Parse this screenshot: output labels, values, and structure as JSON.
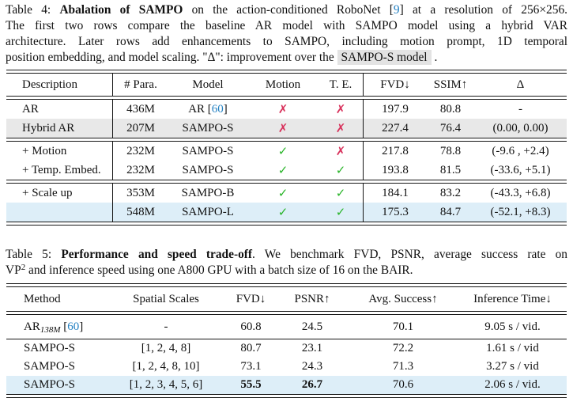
{
  "colors": {
    "cite_blue": "#2380c2",
    "check_green": "#28b428",
    "cross_red": "#d8315b",
    "row_gray": "#e8e8e8",
    "row_blue": "#ddeef8",
    "highlight_gray": "#e3e3e3",
    "rule_color": "#161616"
  },
  "icons": {
    "check": "✓",
    "cross": "✗"
  },
  "caption4": {
    "line1": {
      "prefix": "Table 4: ",
      "bold": "Abalation of SAMPO",
      "mid": " on the action-conditioned RoboNet [",
      "cite": "9",
      "suffix": "] at a resolution of 256×256."
    },
    "line2": "The first two rows compare the baseline AR model with SAMPO model using a hybrid VAR",
    "line3": "architecture.  Later rows add enhancements to SAMPO, including motion prompt, 1D temporal",
    "line4": {
      "prefix": "position embedding, and model scaling. \"Δ\": improvement over the ",
      "highlight": "SAMPO-S model",
      "suffix": " ."
    }
  },
  "table4": {
    "headers": [
      "Description",
      "# Para.",
      "Model",
      "Motion",
      "T. E.",
      "FVD↓",
      "SSIM↑",
      "Δ"
    ],
    "rows": [
      {
        "desc": "AR",
        "para": "436M",
        "model_pre": "AR [",
        "model_cite": "60",
        "model_post": "]",
        "motion": "cross",
        "te": "cross",
        "fvd": "197.9",
        "ssim": "80.8",
        "delta": "-",
        "bg": "white",
        "rule_after": null
      },
      {
        "desc": "Hybrid AR",
        "para": "207M",
        "model": "SAMPO-S",
        "motion": "cross",
        "te": "cross",
        "fvd": "227.4",
        "ssim": "76.4",
        "delta": "(0.00, 0.00)",
        "bg": "gray",
        "rule_after": "double"
      },
      {
        "desc": "+ Motion",
        "para": "232M",
        "model": "SAMPO-S",
        "motion": "check",
        "te": "cross",
        "fvd": "217.8",
        "ssim": "78.8",
        "delta": "(-9.6 , +2.4)",
        "bg": "white",
        "rule_after": null
      },
      {
        "desc": "+ Temp. Embed.",
        "para": "232M",
        "model": "SAMPO-S",
        "motion": "check",
        "te": "check",
        "fvd": "193.8",
        "ssim": "81.5",
        "delta": "(-33.6, +5.1)",
        "bg": "white",
        "rule_after": "double"
      },
      {
        "desc": "+ Scale up",
        "para": "353M",
        "model": "SAMPO-B",
        "motion": "check",
        "te": "check",
        "fvd": "184.1",
        "ssim": "83.2",
        "delta": "(-43.3, +6.8)",
        "bg": "white",
        "rule_after": null
      },
      {
        "desc": "",
        "para": "548M",
        "model": "SAMPO-L",
        "motion": "check",
        "te": "check",
        "fvd": "175.3",
        "ssim": "84.7",
        "delta": "(-52.1, +8.3)",
        "bg": "blue",
        "rule_after": "double"
      }
    ]
  },
  "caption5": {
    "line1": {
      "prefix": "Table 5: ",
      "bold": "Performance and speed trade-off",
      "suffix": ". We benchmark FVD, PSNR, average success rate on"
    },
    "line2": {
      "pre": "VP",
      "sup": "2",
      "suffix": " and inference speed using one A800 GPU with a batch size of 16 on the BAIR."
    }
  },
  "table5": {
    "headers": [
      "Method",
      "Spatial Scales",
      "FVD↓",
      "PSNR↑",
      "Avg. Success↑",
      "Inference Time↓"
    ],
    "rows": [
      {
        "method_pre": "AR",
        "method_sub": "138M",
        "method_mid": " [",
        "method_cite": "60",
        "method_post": "]",
        "scales": "-",
        "fvd": "60.8",
        "psnr": "24.5",
        "success": "70.1",
        "time": "9.05 s / vid.",
        "bg": "white",
        "rule_after": "single",
        "bold_fvd": false,
        "bold_psnr": false
      },
      {
        "method": "SAMPO-S",
        "scales": "[1, 2, 4, 8]",
        "fvd": "80.7",
        "psnr": "23.1",
        "success": "72.2",
        "time": "1.61 s / vid",
        "bg": "white",
        "rule_after": null,
        "bold_fvd": false,
        "bold_psnr": false
      },
      {
        "method": "SAMPO-S",
        "scales": "[1, 2, 4, 8, 10]",
        "fvd": "73.1",
        "psnr": "24.3",
        "success": "71.3",
        "time": "3.27 s / vid",
        "bg": "white",
        "rule_after": null,
        "bold_fvd": false,
        "bold_psnr": false
      },
      {
        "method": "SAMPO-S",
        "scales": "[1, 2, 3, 4, 5, 6]",
        "fvd": "55.5",
        "psnr": "26.7",
        "success": "70.6",
        "time": "2.06 s / vid.",
        "bg": "blue",
        "rule_after": "double",
        "bold_fvd": true,
        "bold_psnr": true
      }
    ]
  }
}
